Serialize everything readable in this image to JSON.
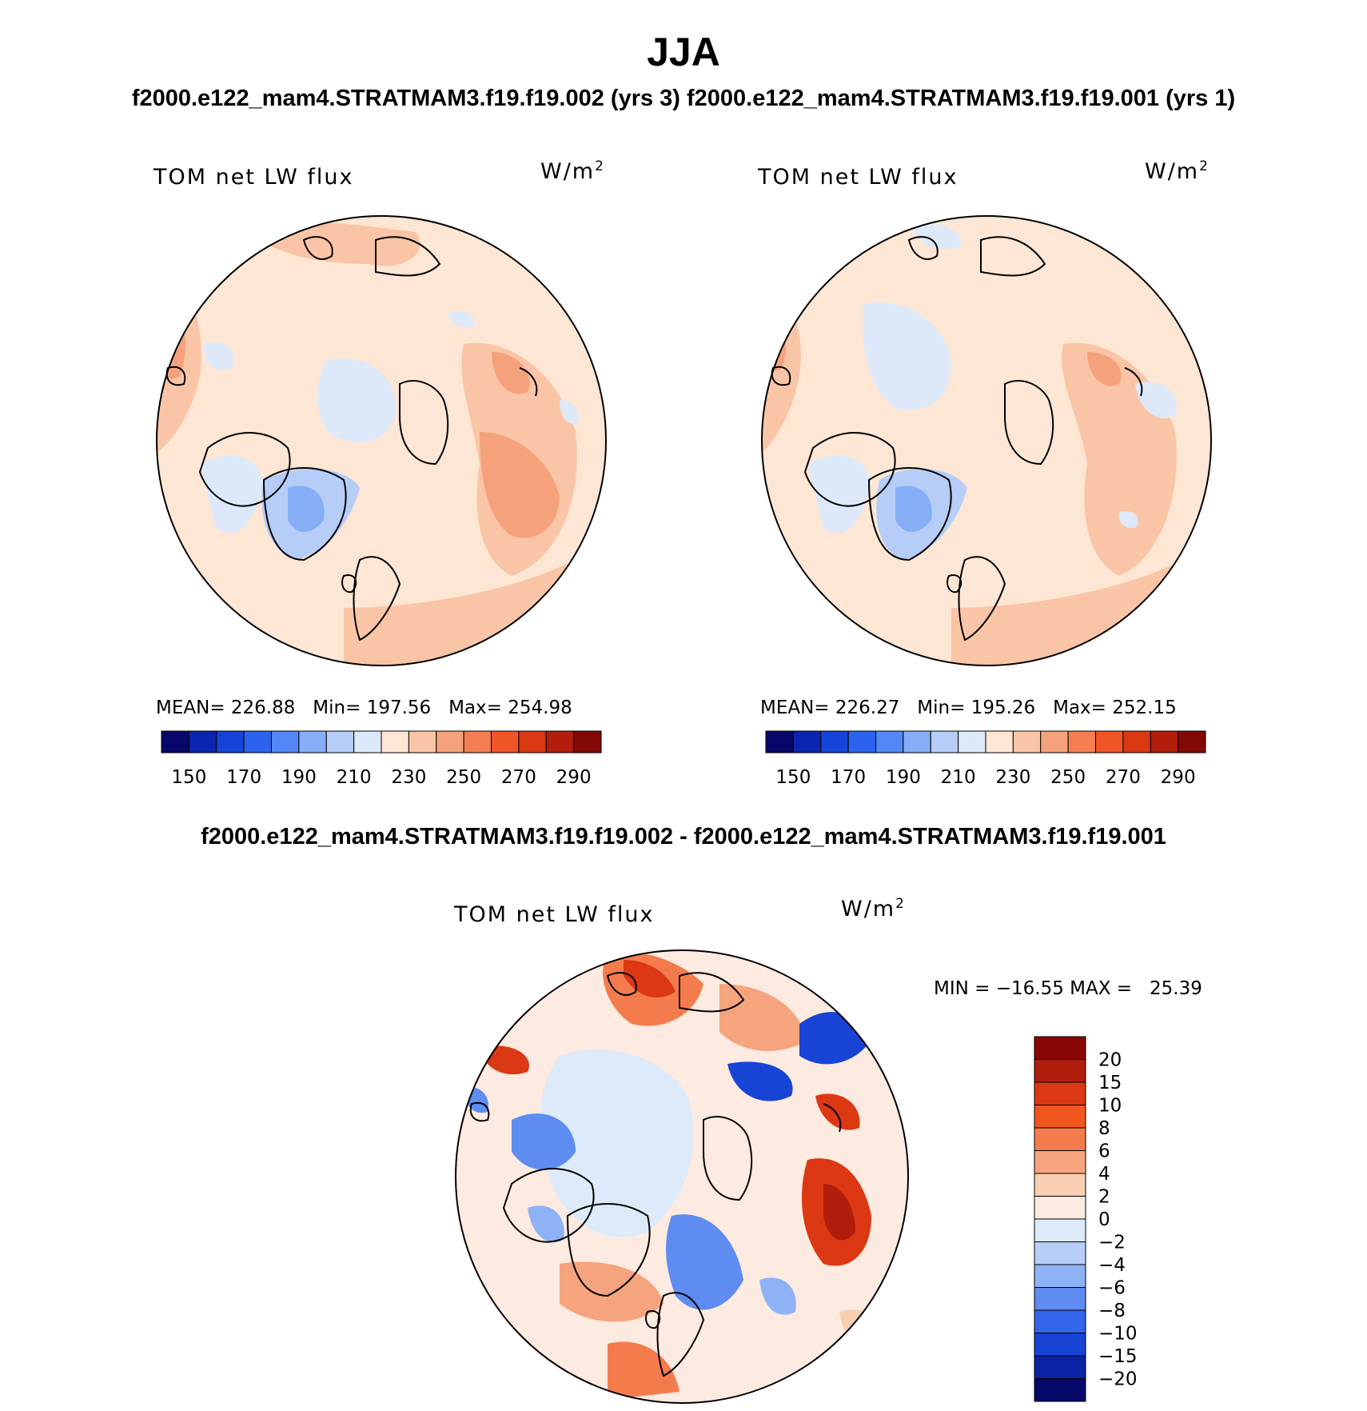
{
  "header": {
    "title": "JJA",
    "subtitle": "f2000.e122_mam4.STRATMAM3.f19.f19.002 (yrs 3)  f2000.e122_mam4.STRATMAM3.f19.f19.001 (yrs 1)",
    "diff_title": "f2000.e122_mam4.STRATMAM3.f19.f19.002 - f2000.e122_mam4.STRATMAM3.f19.f19.001"
  },
  "panels": [
    {
      "label": "TOM net LW flux",
      "unit_base": "W/m",
      "unit_sup": "2",
      "stats": "MEAN= 226.88   Min= 197.56   Max= 254.98"
    },
    {
      "label": "TOM net LW flux",
      "unit_base": "W/m",
      "unit_sup": "2",
      "stats": "MEAN= 226.27   Min= 195.26   Max= 252.15"
    }
  ],
  "diff_panel": {
    "label": "TOM net LW flux",
    "unit_base": "W/m",
    "unit_sup": "2",
    "stats": "MIN = −16.55 MAX =   25.39"
  },
  "colorbar_abs": {
    "colors": [
      "#08086b",
      "#0a25b0",
      "#1544d8",
      "#2b63ef",
      "#5287f5",
      "#86aef7",
      "#b6cdf7",
      "#dde9f9",
      "#fde6d4",
      "#f9c5a6",
      "#f5a27c",
      "#f47d52",
      "#ef5527",
      "#d93813",
      "#b11e0b",
      "#820906"
    ],
    "tick_labels": [
      "150",
      "170",
      "190",
      "210",
      "230",
      "250",
      "270",
      "290"
    ]
  },
  "colorbar_diff": {
    "colors": [
      "#8a0606",
      "#b11d0c",
      "#dc3813",
      "#f2561f",
      "#f47c4c",
      "#f6a47d",
      "#f9cdb0",
      "#fdeae0",
      "#dceaf9",
      "#b7cef8",
      "#8eb2f6",
      "#5e8cf0",
      "#3366ea",
      "#1844d6",
      "#0a22a6",
      "#06086a"
    ],
    "tick_labels": [
      "20",
      "15",
      "10",
      "8",
      "6",
      "4",
      "2",
      "0",
      "−2",
      "−4",
      "−6",
      "−8",
      "−10",
      "−15",
      "−20"
    ]
  }
}
